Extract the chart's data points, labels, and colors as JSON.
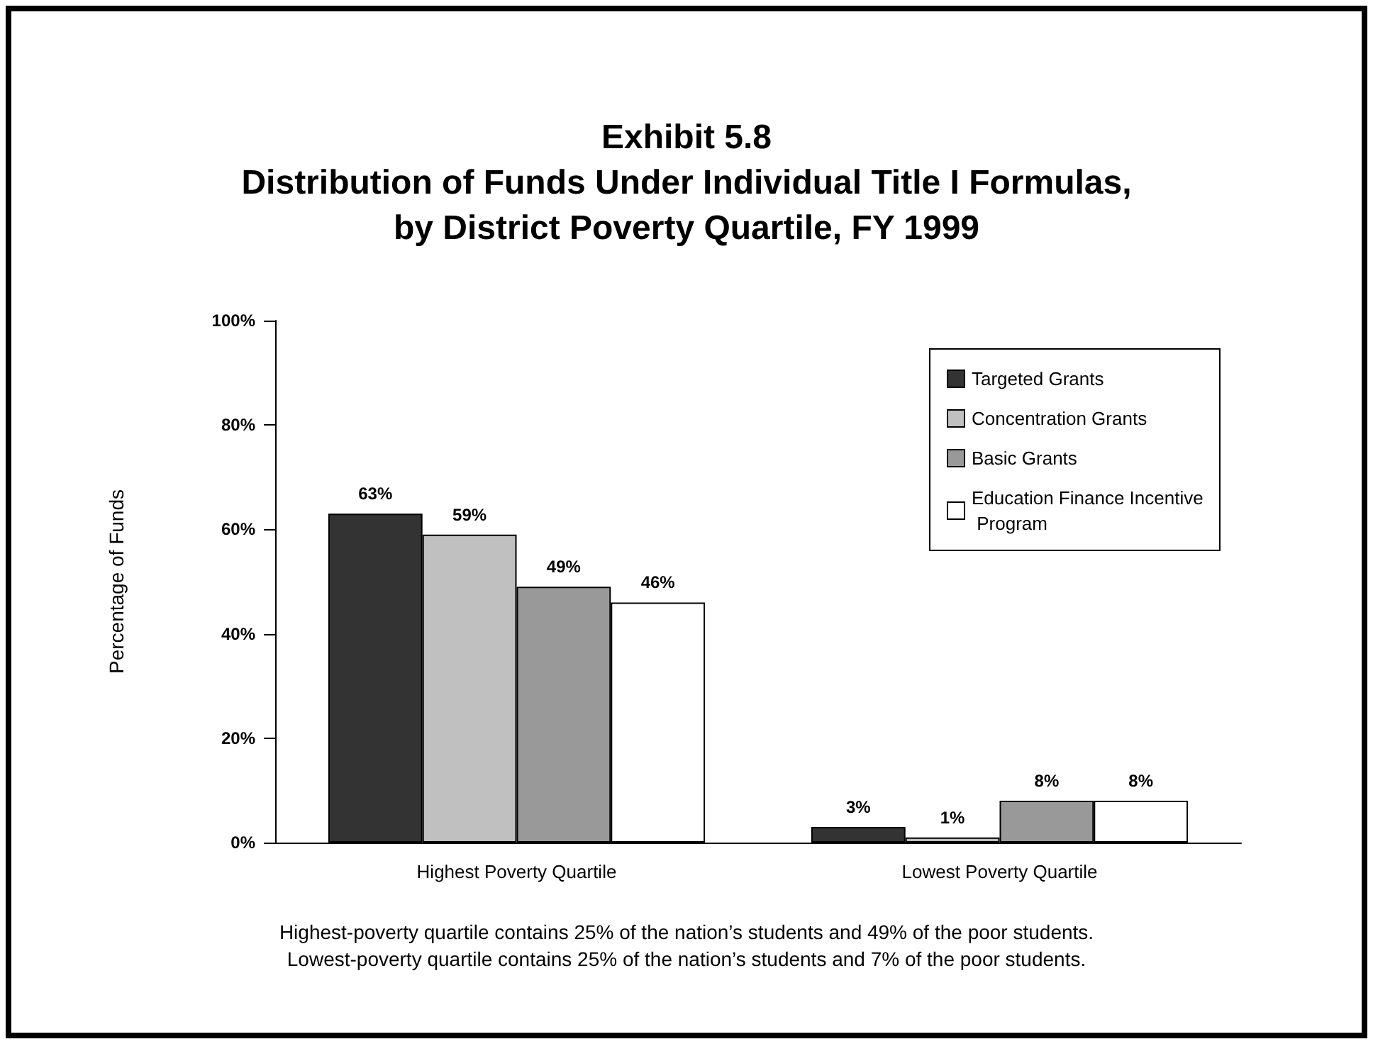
{
  "chart_data": {
    "type": "bar",
    "title": "Exhibit 5.8\nDistribution of Funds Under Individual Title I Formulas,\nby District Poverty Quartile, FY 1999",
    "ylabel": "Percentage of Funds",
    "categories": [
      "Highest Poverty Quartile",
      "Lowest Poverty Quartile"
    ],
    "series": [
      {
        "name": "Targeted Grants",
        "color": "#333333",
        "values": [
          63,
          3
        ],
        "value_labels": [
          "63%",
          "3%"
        ]
      },
      {
        "name": "Concentration Grants",
        "color": "#c0c0c0",
        "values": [
          59,
          1
        ],
        "value_labels": [
          "59%",
          "1%"
        ]
      },
      {
        "name": "Basic Grants",
        "color": "#999999",
        "values": [
          49,
          8
        ],
        "value_labels": [
          "49%",
          "8%"
        ]
      },
      {
        "name": "Education Finance Incentive Program",
        "color": "#ffffff",
        "values": [
          46,
          8
        ],
        "value_labels": [
          "46%",
          "8%"
        ]
      }
    ],
    "ylim": [
      0,
      100
    ],
    "yticks": [
      {
        "value": 0,
        "label": "0%"
      },
      {
        "value": 20,
        "label": "20%"
      },
      {
        "value": 40,
        "label": "40%"
      },
      {
        "value": 60,
        "label": "60%"
      },
      {
        "value": 80,
        "label": "80%"
      },
      {
        "value": 100,
        "label": "100%"
      }
    ],
    "grid": false,
    "legend": "top right",
    "annotations": [
      "Highest-poverty quartile contains 25% of the nation’s students and 49% of the poor students.",
      "Lowest-poverty quartile contains 25% of the nation’s students and 7% of the poor students."
    ]
  }
}
